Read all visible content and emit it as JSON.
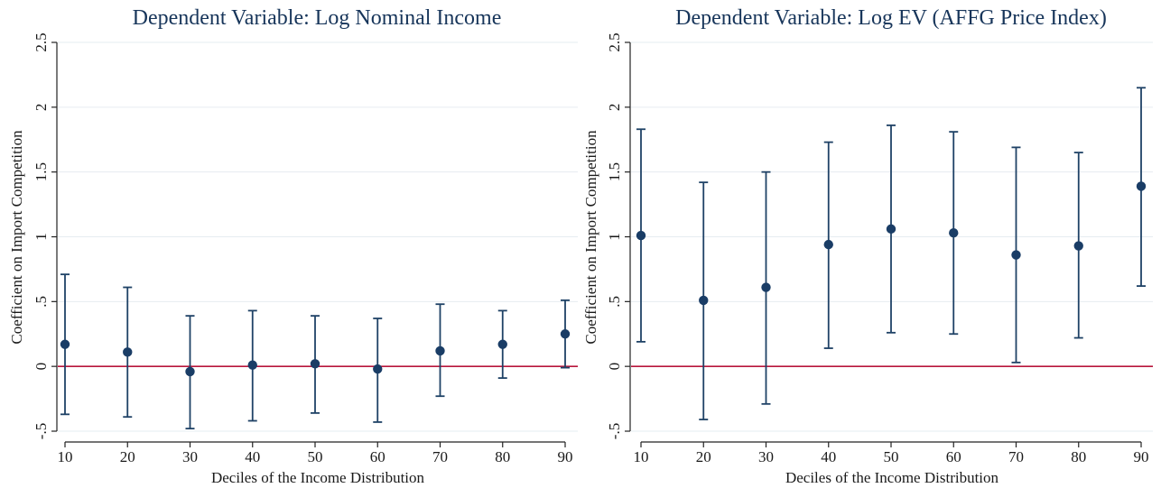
{
  "colors": {
    "marker": "#1a3d66",
    "errorbar": "#1f4266",
    "zero_line": "#b8163c",
    "grid": "#e6ecf1",
    "axis": "#222222",
    "text": "#1a1a1a",
    "title": "#17355a"
  },
  "chart_data": [
    {
      "type": "scatter",
      "error_bars": true,
      "title": "Dependent Variable: Log Nominal Income",
      "xlabel": "Deciles of the Income Distribution",
      "ylabel": "Coefficient on Import Competition",
      "x": [
        10,
        20,
        30,
        40,
        50,
        60,
        70,
        80,
        90
      ],
      "y": [
        0.17,
        0.11,
        -0.04,
        0.01,
        0.02,
        -0.02,
        0.12,
        0.17,
        0.25
      ],
      "ci_low": [
        -0.37,
        -0.39,
        -0.48,
        -0.42,
        -0.36,
        -0.43,
        -0.23,
        -0.09,
        -0.01
      ],
      "ci_high": [
        0.71,
        0.61,
        0.39,
        0.43,
        0.39,
        0.37,
        0.48,
        0.43,
        0.51
      ],
      "xticks": [
        10,
        20,
        30,
        40,
        50,
        60,
        70,
        80,
        90
      ],
      "xtick_labels": [
        "10",
        "20",
        "30",
        "40",
        "50",
        "60",
        "70",
        "80",
        "90"
      ],
      "yticks": [
        -0.5,
        0,
        0.5,
        1,
        1.5,
        2,
        2.5
      ],
      "ytick_labels": [
        "-.5",
        "0",
        ".5",
        "1",
        "1.5",
        "2",
        "2.5"
      ],
      "xlim": [
        10,
        90
      ],
      "ylim": [
        -0.5,
        2.5
      ],
      "reference_line_y": 0,
      "grid": true
    },
    {
      "type": "scatter",
      "error_bars": true,
      "title": "Dependent Variable: Log EV (AFFG Price Index)",
      "xlabel": "Deciles of the Income Distribution",
      "ylabel": "Coefficient on Import Competition",
      "x": [
        10,
        20,
        30,
        40,
        50,
        60,
        70,
        80,
        90
      ],
      "y": [
        1.01,
        0.51,
        0.61,
        0.94,
        1.06,
        1.03,
        0.86,
        0.93,
        1.39
      ],
      "ci_low": [
        0.19,
        -0.41,
        -0.29,
        0.14,
        0.26,
        0.25,
        0.03,
        0.22,
        0.62
      ],
      "ci_high": [
        1.83,
        1.42,
        1.5,
        1.73,
        1.86,
        1.81,
        1.69,
        1.65,
        2.15
      ],
      "xticks": [
        10,
        20,
        30,
        40,
        50,
        60,
        70,
        80,
        90
      ],
      "xtick_labels": [
        "10",
        "20",
        "30",
        "40",
        "50",
        "60",
        "70",
        "80",
        "90"
      ],
      "yticks": [
        -0.5,
        0,
        0.5,
        1,
        1.5,
        2,
        2.5
      ],
      "ytick_labels": [
        "-.5",
        "0",
        ".5",
        "1",
        "1.5",
        "2",
        "2.5"
      ],
      "xlim": [
        10,
        90
      ],
      "ylim": [
        -0.5,
        2.5
      ],
      "reference_line_y": 0,
      "grid": true
    }
  ]
}
